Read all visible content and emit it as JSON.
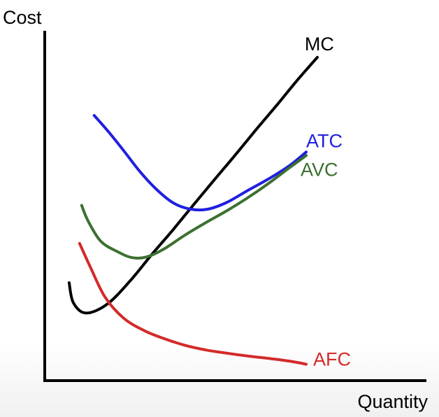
{
  "chart_data": {
    "type": "line",
    "title": "",
    "ylabel": "Cost",
    "xlabel": "Quantity",
    "xlim": [
      0,
      100
    ],
    "ylim": [
      0,
      100
    ],
    "grid": false,
    "legend": "inline labels at right end of each curve",
    "series": [
      {
        "name": "MC",
        "color": "#000000",
        "points": [
          [
            6.6,
            28.1
          ],
          [
            7.8,
            22.4
          ],
          [
            11.4,
            19.4
          ],
          [
            17.5,
            21.9
          ],
          [
            24.1,
            28.6
          ],
          [
            30.1,
            35.9
          ],
          [
            36.2,
            43.0
          ],
          [
            42.2,
            50.3
          ],
          [
            48.2,
            57.5
          ],
          [
            54.2,
            64.6
          ],
          [
            60.2,
            71.9
          ],
          [
            66.3,
            79.1
          ],
          [
            72.3,
            86.4
          ],
          [
            77.9,
            92.8
          ]
        ]
      },
      {
        "name": "ATC",
        "color": "#1f1fe0",
        "points": [
          [
            13.8,
            76.1
          ],
          [
            18.1,
            71.2
          ],
          [
            22.9,
            65.2
          ],
          [
            27.1,
            59.8
          ],
          [
            31.9,
            54.7
          ],
          [
            36.7,
            50.9
          ],
          [
            41.6,
            49.2
          ],
          [
            46.4,
            49.2
          ],
          [
            51.8,
            51.1
          ],
          [
            57.8,
            54.5
          ],
          [
            63.9,
            57.9
          ],
          [
            69.9,
            61.7
          ],
          [
            74.7,
            65.6
          ]
        ]
      },
      {
        "name": "AVC",
        "color": "#3c7030",
        "points": [
          [
            10.2,
            50.3
          ],
          [
            12.0,
            45.9
          ],
          [
            15.7,
            40.0
          ],
          [
            20.5,
            37.0
          ],
          [
            24.7,
            35.3
          ],
          [
            28.9,
            35.5
          ],
          [
            33.7,
            37.7
          ],
          [
            39.8,
            41.7
          ],
          [
            45.8,
            45.3
          ],
          [
            51.8,
            48.7
          ],
          [
            57.8,
            52.4
          ],
          [
            63.9,
            56.6
          ],
          [
            69.9,
            61.1
          ],
          [
            74.7,
            64.6
          ]
        ]
      },
      {
        "name": "AFC",
        "color": "#d42a2a",
        "points": [
          [
            9.6,
            39.4
          ],
          [
            12.7,
            32.6
          ],
          [
            16.9,
            24.0
          ],
          [
            22.3,
            17.9
          ],
          [
            28.3,
            14.3
          ],
          [
            34.3,
            11.9
          ],
          [
            40.4,
            10.0
          ],
          [
            46.4,
            8.7
          ],
          [
            52.4,
            7.8
          ],
          [
            58.4,
            7.0
          ],
          [
            64.5,
            6.3
          ],
          [
            70.5,
            5.5
          ],
          [
            74.7,
            4.7
          ]
        ]
      }
    ]
  }
}
